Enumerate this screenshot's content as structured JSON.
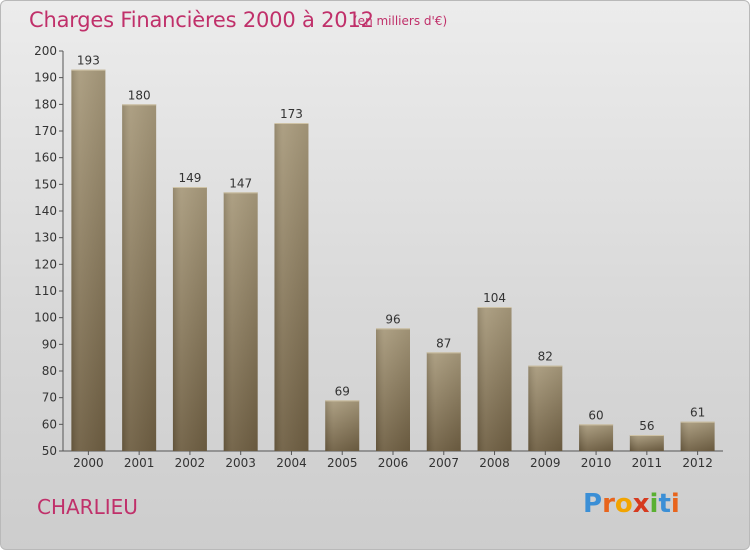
{
  "title": "Charges Financières 2000 à 2012",
  "subtitle": "(en milliers d'€)",
  "commune": "CHARLIEU",
  "logo": {
    "letters": [
      "P",
      "r",
      "o",
      "x",
      "i",
      "t",
      "i"
    ],
    "colors": [
      "#3b8fd6",
      "#e8641c",
      "#f2a400",
      "#d63a1f",
      "#5ab031",
      "#3b8fd6",
      "#e8641c"
    ]
  },
  "colors": {
    "title": "#c0306a",
    "bar_light": "#a89a7c",
    "bar_dark": "#6e5e42"
  },
  "chart_data": {
    "type": "bar",
    "categories": [
      "2000",
      "2001",
      "2002",
      "2003",
      "2004",
      "2005",
      "2006",
      "2007",
      "2008",
      "2009",
      "2010",
      "2011",
      "2012"
    ],
    "values": [
      193,
      180,
      149,
      147,
      173,
      69,
      96,
      87,
      104,
      82,
      60,
      56,
      61
    ],
    "ylim": [
      50,
      200
    ],
    "yticks": [
      50,
      60,
      70,
      80,
      90,
      100,
      110,
      120,
      130,
      140,
      150,
      160,
      170,
      180,
      190,
      200
    ],
    "grid": false,
    "data_labels": true
  }
}
